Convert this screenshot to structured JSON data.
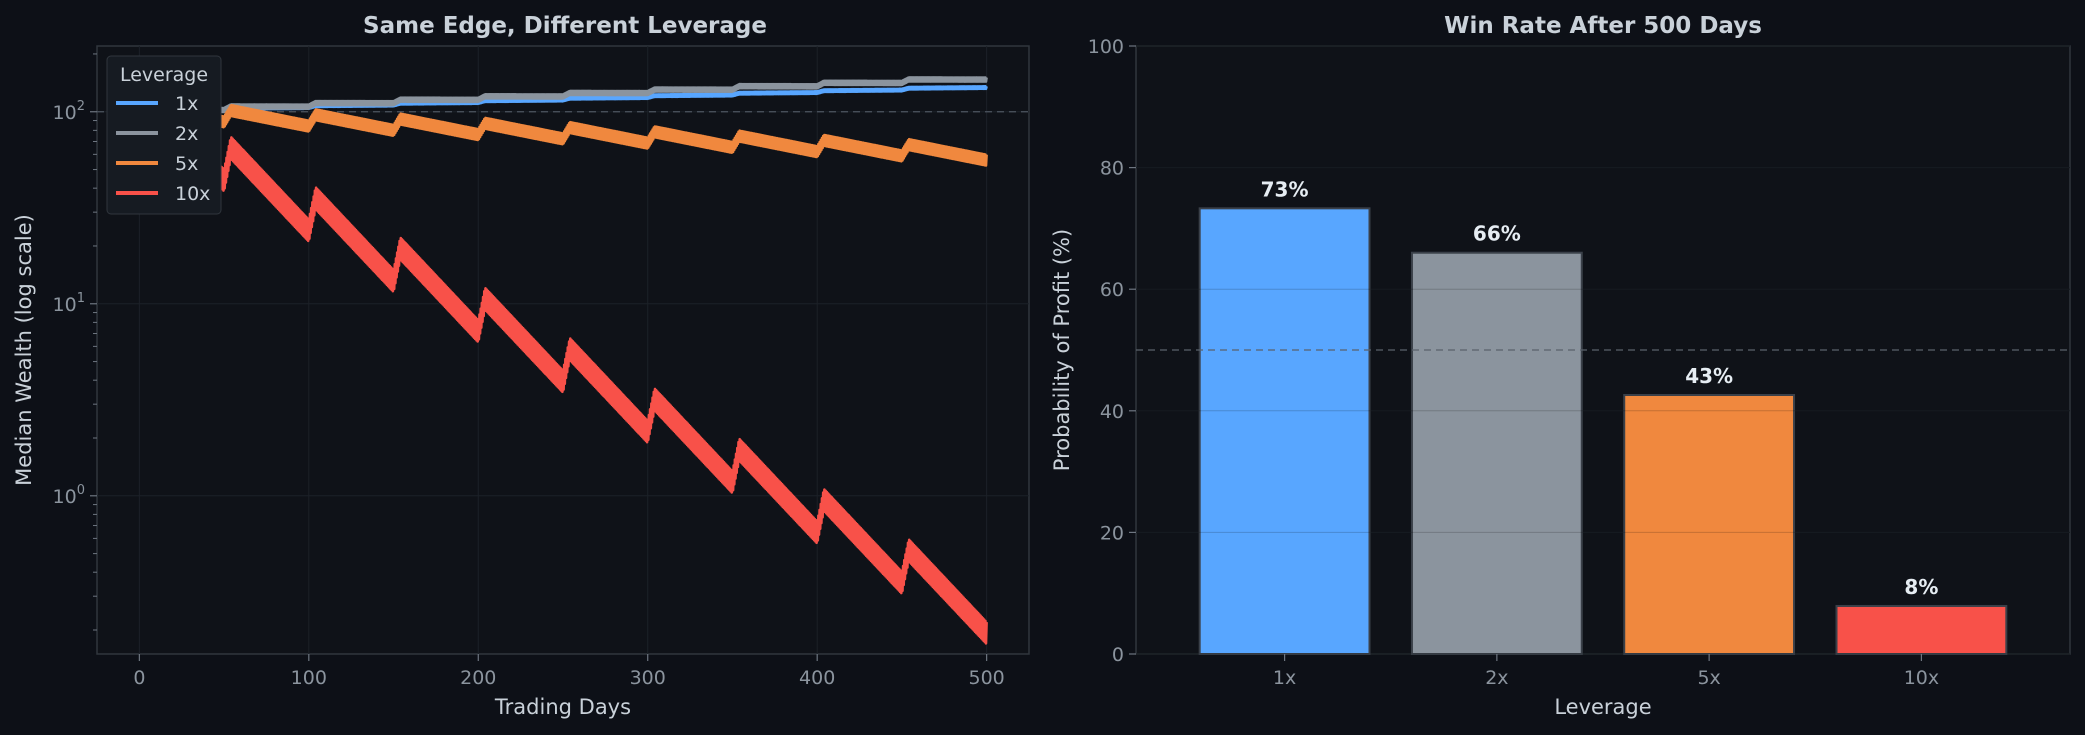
{
  "chart_data": [
    {
      "type": "line",
      "title": "Same Edge, Different Leverage",
      "xlabel": "Trading Days",
      "ylabel": "Median Wealth (log scale)",
      "yscale": "log",
      "xlim": [
        -25,
        525
      ],
      "ylim": [
        0.15,
        220
      ],
      "x_ticks": [
        "0",
        "100",
        "200",
        "300",
        "400",
        "500"
      ],
      "reference_line": {
        "y": 100,
        "style": "dashed"
      },
      "legend": {
        "title": "Leverage",
        "placement": "top-left"
      },
      "series": [
        {
          "name": "1x",
          "color": "#58a6ff",
          "x": [
            0,
            500
          ],
          "y": [
            100,
            135
          ],
          "band_ratio": 1.03,
          "cycles": 10,
          "zigzag_ratio": 1.02
        },
        {
          "name": "2x",
          "color": "#8b949e",
          "x": [
            0,
            500
          ],
          "y": [
            100,
            150
          ],
          "band_ratio": 1.05,
          "cycles": 10,
          "zigzag_ratio": 1.04
        },
        {
          "name": "5x",
          "color": "#f0883e",
          "x": [
            0,
            500
          ],
          "y": [
            100,
            60
          ],
          "band_ratio": 1.14,
          "cycles": 10,
          "zigzag_ratio": 1.15
        },
        {
          "name": "10x",
          "color": "#f85149",
          "x": [
            0,
            500
          ],
          "y": [
            100,
            0.24
          ],
          "band_ratio": 1.3,
          "cycles": 10,
          "zigzag_ratio": 1.55
        }
      ]
    },
    {
      "type": "bar",
      "title": "Win Rate After 500 Days",
      "xlabel": "Leverage",
      "ylabel": "Probability of Profit (%)",
      "categories": [
        "1x",
        "2x",
        "5x",
        "10x"
      ],
      "values": [
        73.3,
        66.0,
        42.6,
        7.9
      ],
      "value_labels": [
        "73%",
        "66%",
        "43%",
        "8%"
      ],
      "colors": [
        "#58a6ff",
        "#8b949e",
        "#f0883e",
        "#f85149"
      ],
      "ylim": [
        0,
        100
      ],
      "y_ticks": [
        "0",
        "20",
        "40",
        "60",
        "80",
        "100"
      ],
      "reference_line": {
        "y": 50,
        "style": "dashed"
      }
    }
  ]
}
